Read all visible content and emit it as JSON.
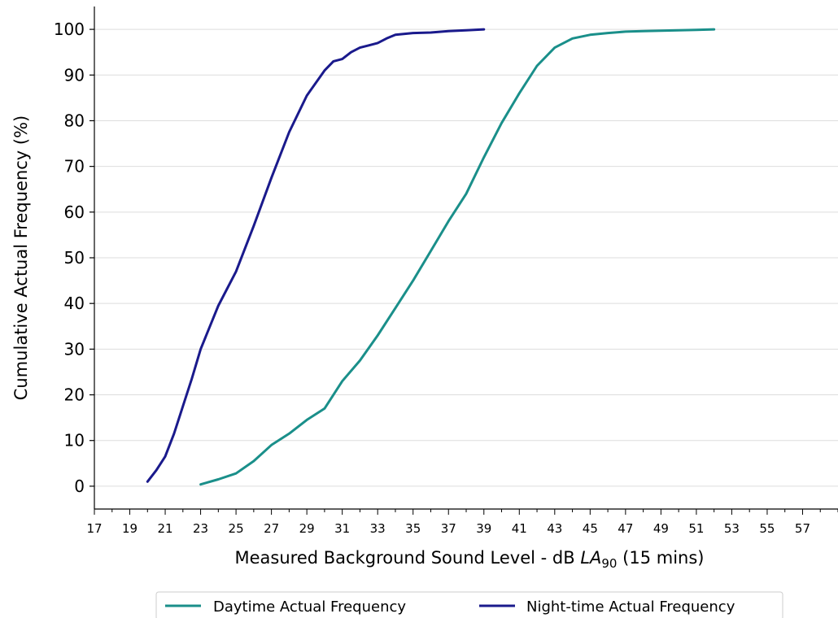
{
  "chart_data": {
    "type": "line",
    "xlabel_main": "Measured Background Sound Level - dB ",
    "xlabel_italic": "LA",
    "xlabel_sub": "90",
    "xlabel_tail": " (15 mins)",
    "ylabel": "Cumulative Actual Frequency (%)",
    "xlim": [
      17,
      59
    ],
    "ylim": [
      -5,
      105
    ],
    "xticks": [
      17,
      19,
      21,
      23,
      25,
      27,
      29,
      31,
      33,
      35,
      37,
      39,
      41,
      43,
      45,
      47,
      49,
      51,
      53,
      55,
      57
    ],
    "yticks": [
      0,
      10,
      20,
      30,
      40,
      50,
      60,
      70,
      80,
      90,
      100
    ],
    "grid": "horizontal",
    "legend_position": "bottom-center",
    "series": [
      {
        "name": "Daytime Actual Frequency",
        "color": "#1a8f8a",
        "x": [
          23,
          24,
          25,
          26,
          27,
          28,
          29,
          30,
          31,
          32,
          33,
          34,
          35,
          36,
          37,
          38,
          39,
          40,
          41,
          42,
          43,
          44,
          45,
          46,
          47,
          48,
          49,
          50,
          51,
          52
        ],
        "y": [
          0.4,
          1.5,
          2.8,
          5.5,
          9,
          11.5,
          14.5,
          17,
          23,
          27.5,
          33,
          39,
          45,
          51.5,
          58,
          64,
          72,
          79.5,
          86,
          92,
          96,
          98,
          98.8,
          99.2,
          99.5,
          99.6,
          99.7,
          99.8,
          99.9,
          100
        ]
      },
      {
        "name": "Night-time Actual Frequency",
        "color": "#1a1a8c",
        "x": [
          20,
          20.5,
          21,
          21.5,
          22,
          22.5,
          23,
          24,
          25,
          26,
          27,
          28,
          29,
          30,
          30.5,
          31,
          31.5,
          32,
          32.5,
          33,
          33.5,
          34,
          35,
          36,
          37,
          38,
          39
        ],
        "y": [
          1,
          3.5,
          6.5,
          11.5,
          17.5,
          23.5,
          30,
          39.5,
          47,
          57,
          67.5,
          77.5,
          85.5,
          91,
          93,
          93.5,
          95,
          96,
          96.5,
          97,
          98,
          98.8,
          99.2,
          99.3,
          99.6,
          99.8,
          100
        ]
      }
    ]
  }
}
